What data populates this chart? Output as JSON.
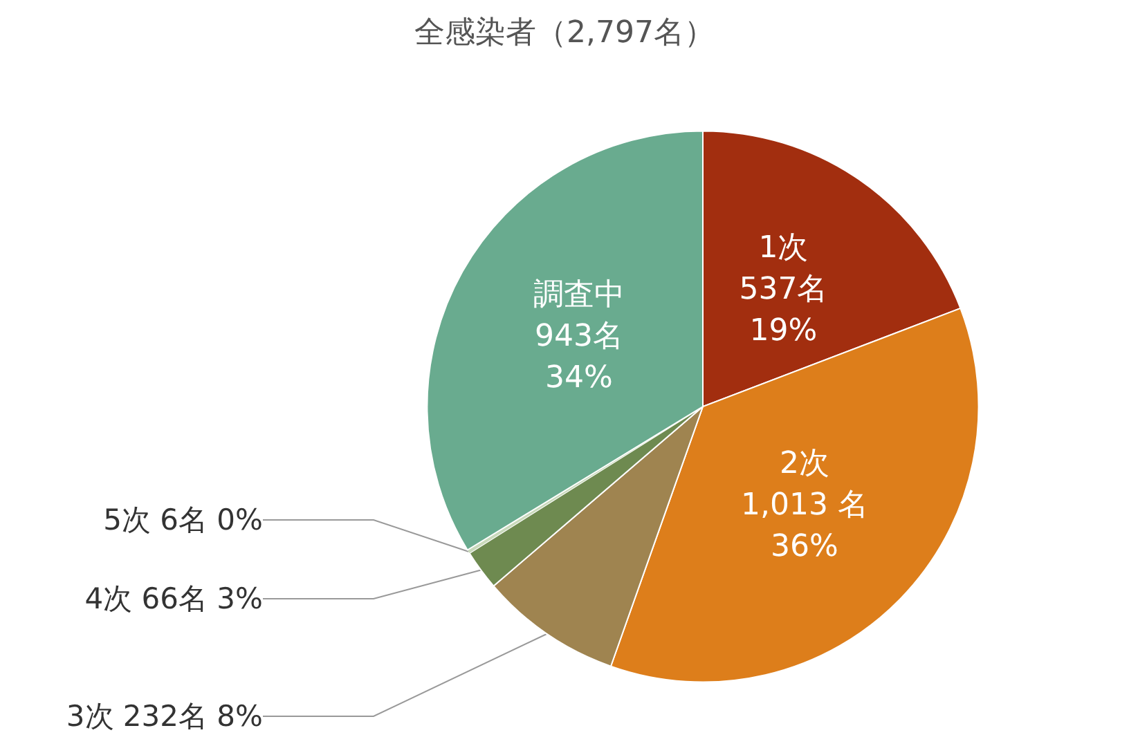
{
  "chart_data": {
    "type": "pie",
    "title": "全感染者（2,797名）",
    "categories": [
      "1次",
      "2次",
      "3次",
      "4次",
      "5次",
      "調査中"
    ],
    "values": [
      537,
      1013,
      232,
      66,
      6,
      943
    ],
    "colors": [
      "#a22e0f",
      "#dd7e1b",
      "#9f8450",
      "#6e8a50",
      "#c9d9bb",
      "#69ab8f"
    ],
    "value_labels": [
      "537名\n19%",
      "1,013 名\n36%",
      "232名 8%",
      "66名 3%",
      "6名 0%",
      "943名\n34%"
    ]
  }
}
